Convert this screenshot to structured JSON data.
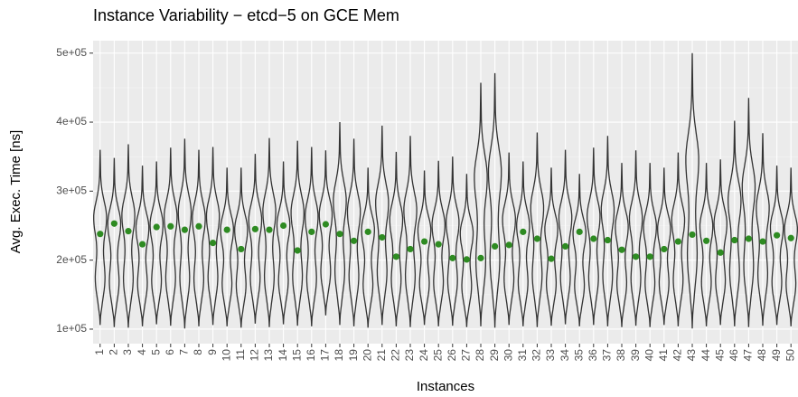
{
  "chart_data": {
    "type": "violin",
    "title": "Instance Variability − etcd−5 on GCE Mem",
    "x_label": "Instances",
    "y_label": "Avg. Exec. Time [ns]",
    "categories": [
      "1",
      "2",
      "3",
      "4",
      "5",
      "6",
      "7",
      "8",
      "9",
      "10",
      "11",
      "12",
      "13",
      "14",
      "15",
      "16",
      "17",
      "18",
      "19",
      "20",
      "21",
      "22",
      "23",
      "24",
      "25",
      "26",
      "27",
      "28",
      "29",
      "30",
      "31",
      "32",
      "33",
      "34",
      "35",
      "36",
      "37",
      "38",
      "39",
      "40",
      "41",
      "42",
      "43",
      "44",
      "45",
      "46",
      "47",
      "48",
      "49",
      "50"
    ],
    "values": [
      238000,
      253000,
      242000,
      223000,
      248000,
      249000,
      244000,
      249000,
      225000,
      244000,
      216000,
      245000,
      244000,
      250000,
      214000,
      241000,
      252000,
      238000,
      228000,
      241000,
      233000,
      205000,
      216000,
      227000,
      223000,
      203000,
      201000,
      203000,
      220000,
      222000,
      241000,
      231000,
      202000,
      220000,
      241000,
      231000,
      229000,
      215000,
      205000,
      205000,
      216000,
      227000,
      237000,
      228000,
      211000,
      229000,
      231000,
      227000,
      236000,
      232000
    ],
    "min": [
      106000,
      103000,
      102000,
      104000,
      107000,
      105000,
      101000,
      104000,
      106000,
      104000,
      102000,
      108000,
      103000,
      107000,
      105000,
      104000,
      120000,
      106000,
      104000,
      102000,
      106000,
      104000,
      103000,
      106000,
      104000,
      105000,
      103000,
      104000,
      102000,
      106000,
      104000,
      103000,
      105000,
      107000,
      104000,
      106000,
      104000,
      103000,
      105000,
      103000,
      106000,
      104000,
      101000,
      104000,
      106000,
      104000,
      103000,
      105000,
      106000,
      104000
    ],
    "max": [
      360000,
      348000,
      368000,
      337000,
      343000,
      363000,
      376000,
      360000,
      364000,
      334000,
      334000,
      354000,
      377000,
      343000,
      373000,
      364000,
      359000,
      400000,
      376000,
      334000,
      395000,
      357000,
      380000,
      330000,
      344000,
      350000,
      325000,
      457000,
      471000,
      356000,
      343000,
      385000,
      334000,
      360000,
      325000,
      363000,
      380000,
      341000,
      359000,
      341000,
      334000,
      356000,
      500000,
      341000,
      346000,
      402000,
      435000,
      384000,
      337000,
      334000
    ],
    "ylim": [
      79000,
      518000
    ],
    "yticks": [
      {
        "value": 100000,
        "label": "1e+05"
      },
      {
        "value": 200000,
        "label": "2e+05"
      },
      {
        "value": 300000,
        "label": "3e+05"
      },
      {
        "value": 400000,
        "label": "4e+05"
      },
      {
        "value": 500000,
        "label": "5e+05"
      }
    ],
    "grid": true,
    "violin_color": "#333333",
    "point_color": "#2e8b22",
    "panel_color": "#ebebeb"
  }
}
